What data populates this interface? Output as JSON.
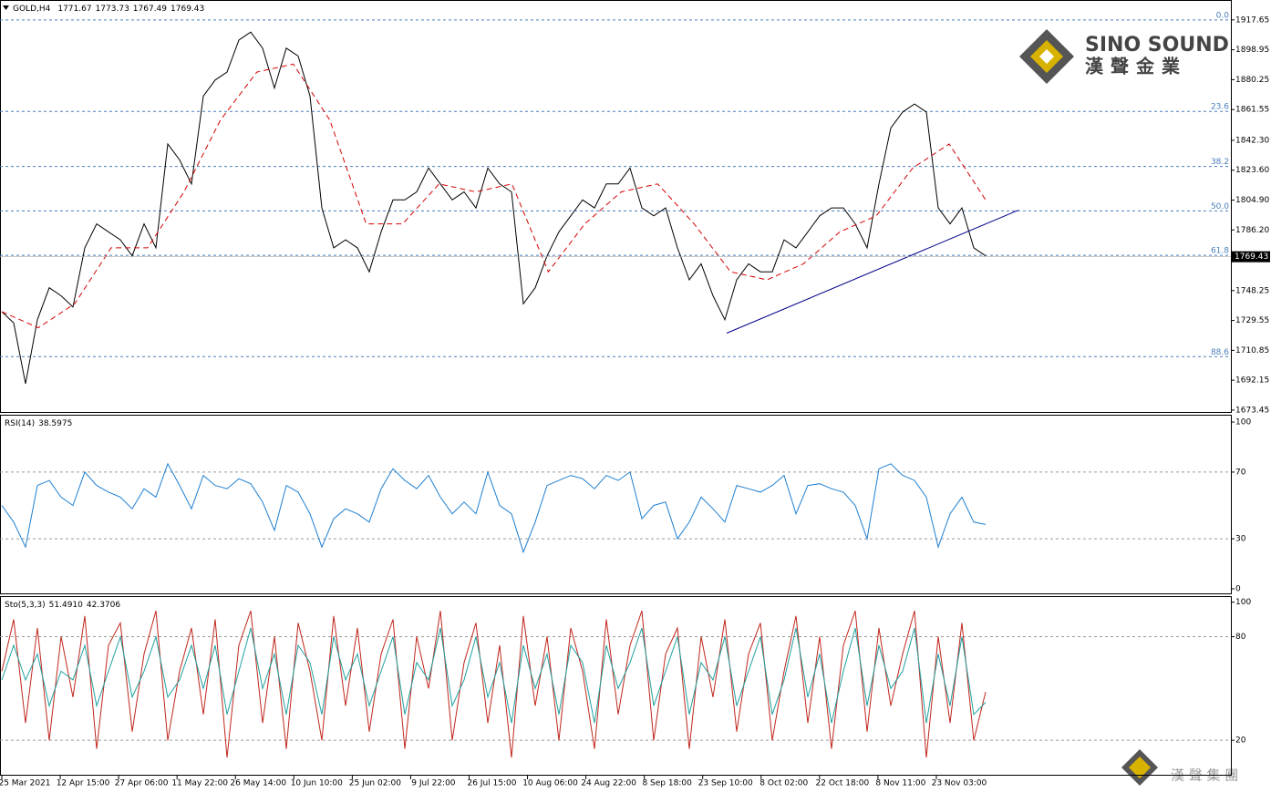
{
  "chart_data": [
    {
      "type": "line",
      "title": "GOLD,H4",
      "header_values": [
        1771.67,
        1773.73,
        1767.49,
        1769.43
      ],
      "last_price": 1769.43,
      "ylim": [
        1671.7,
        1930.1
      ],
      "yticks": [
        1917.65,
        1898.95,
        1880.25,
        1861.55,
        {
          "value": 1842.3,
          "label": "1842.30"
        },
        {
          "value": 1823.6,
          "label": "1823.60"
        },
        {
          "value": 1804.9,
          "label": "1804.90"
        },
        {
          "value": 1786.2,
          "label": "1786.20"
        },
        1748.25,
        1729.55,
        1710.85,
        1692.15,
        1673.45
      ],
      "fib_levels": [
        {
          "value": 1917.65,
          "label": "0.0"
        },
        {
          "value": 1860.4,
          "label": "23.6"
        },
        {
          "value": 1825.9,
          "label": "38.2"
        },
        {
          "value": 1798.1,
          "label": "50.0"
        },
        {
          "value": 1770.3,
          "label": "61.8"
        },
        {
          "value": 1706.9,
          "label": "88.6"
        }
      ],
      "series": [
        {
          "color": "#000000",
          "values": [
            1735,
            1728,
            1690,
            1730,
            1750,
            1745,
            1738,
            1775,
            1790,
            1785,
            1780,
            1770,
            1790,
            1775,
            1840,
            1830,
            1815,
            1870,
            1880,
            1885,
            1905,
            1910,
            1900,
            1875,
            1900,
            1895,
            1870,
            1800,
            1775,
            1780,
            1775,
            1760,
            1785,
            1805,
            1805,
            1810,
            1825,
            1815,
            1805,
            1810,
            1800,
            1825,
            1815,
            1810,
            1740,
            1750,
            1770,
            1785,
            1795,
            1805,
            1800,
            1815,
            1815,
            1825,
            1800,
            1795,
            1800,
            1775,
            1755,
            1765,
            1745,
            1730,
            1755,
            1765,
            1760,
            1760,
            1780,
            1775,
            1785,
            1795,
            1800,
            1800,
            1790,
            1775,
            1815,
            1850,
            1860,
            1865,
            1860,
            1800,
            1790,
            1800,
            1775,
            1770
          ]
        },
        {
          "color": "#d40000",
          "dashed": true,
          "values": [
            1735,
            1725,
            1740,
            1775,
            1775,
            1810,
            1855,
            1885,
            1890,
            1855,
            1790,
            1790,
            1815,
            1810,
            1815,
            1760,
            1790,
            1810,
            1815,
            1790,
            1760,
            1755,
            1765,
            1785,
            1795,
            1825,
            1840,
            1805
          ]
        }
      ],
      "trendline": {
        "color": "#00008b",
        "values": [
          1721.6,
          1798.6
        ]
      }
    },
    {
      "type": "line",
      "title": "RSI(14)",
      "reading": 38.5975,
      "ylim": [
        -3.3,
        104.4
      ],
      "yticks": [
        0,
        30,
        70,
        100
      ],
      "grid_levels": [
        30,
        70
      ],
      "series": [
        {
          "color": "#1e7fd0",
          "values": [
            50,
            40,
            25,
            62,
            65,
            55,
            50,
            70,
            62,
            58,
            55,
            48,
            60,
            55,
            75,
            62,
            48,
            68,
            62,
            60,
            66,
            63,
            52,
            35,
            62,
            58,
            45,
            25,
            42,
            48,
            45,
            40,
            60,
            72,
            65,
            60,
            68,
            55,
            45,
            52,
            45,
            70,
            50,
            45,
            22,
            40,
            62,
            65,
            68,
            66,
            60,
            68,
            65,
            70,
            42,
            50,
            52,
            30,
            40,
            55,
            48,
            40,
            62,
            60,
            58,
            62,
            68,
            45,
            62,
            63,
            60,
            58,
            50,
            30,
            72,
            75,
            68,
            65,
            55,
            25,
            45,
            55,
            40,
            38.6
          ]
        }
      ]
    },
    {
      "type": "line",
      "title": "Sto(5,3,3)",
      "readings": [
        {
          "value": 51.491,
          "label": "51.4910"
        },
        42.3706
      ],
      "ylim": [
        -0.5,
        103.5
      ],
      "yticks": [
        20,
        80,
        100
      ],
      "grid_levels": [
        20,
        80
      ],
      "series": [
        {
          "color": "#c0261c",
          "values": [
            60,
            90,
            30,
            85,
            20,
            80,
            45,
            92,
            15,
            75,
            88,
            25,
            70,
            95,
            20,
            60,
            85,
            35,
            90,
            10,
            75,
            95,
            30,
            80,
            15,
            88,
            60,
            20,
            92,
            40,
            85,
            25,
            70,
            90,
            15,
            80,
            50,
            95,
            20,
            65,
            88,
            30,
            75,
            10,
            92,
            40,
            80,
            20,
            85,
            60,
            15,
            90,
            35,
            75,
            95,
            20,
            70,
            85,
            15,
            80,
            45,
            90,
            25,
            70,
            88,
            20,
            60,
            92,
            30,
            80,
            15,
            75,
            95,
            25,
            85,
            40,
            70,
            95,
            10,
            80,
            30,
            88,
            20,
            48
          ]
        },
        {
          "color": "#20a0a0",
          "values": [
            55,
            75,
            55,
            70,
            40,
            60,
            55,
            75,
            40,
            60,
            80,
            45,
            60,
            80,
            45,
            55,
            75,
            50,
            75,
            35,
            60,
            85,
            50,
            70,
            35,
            75,
            65,
            35,
            80,
            55,
            70,
            40,
            60,
            80,
            35,
            65,
            55,
            85,
            40,
            55,
            80,
            45,
            65,
            30,
            75,
            50,
            70,
            35,
            75,
            65,
            30,
            75,
            50,
            65,
            85,
            40,
            60,
            80,
            35,
            65,
            55,
            80,
            40,
            60,
            80,
            35,
            55,
            85,
            45,
            70,
            30,
            60,
            85,
            40,
            75,
            50,
            60,
            85,
            30,
            70,
            40,
            80,
            35,
            42
          ]
        }
      ],
      "xtick_labels": [
        "25 Mar 2021",
        "12 Apr 15:00",
        "27 Apr 06:00",
        "11 May 22:00",
        "26 May 14:00",
        "10 Jun 10:00",
        "25 Jun 02:00",
        "9 Jul 22:00",
        "26 Jul 15:00",
        "10 Aug 06:00",
        "24 Aug 22:00",
        "8 Sep 18:00",
        "23 Sep 10:00",
        "8 Oct 02:00",
        "22 Oct 18:00",
        "8 Nov 11:00",
        "23 Nov 03:00"
      ]
    }
  ],
  "logo": {
    "name": "SINO SOUND",
    "chinese": "漢聲金業"
  },
  "footer_logo": "漢 聲 集 團"
}
